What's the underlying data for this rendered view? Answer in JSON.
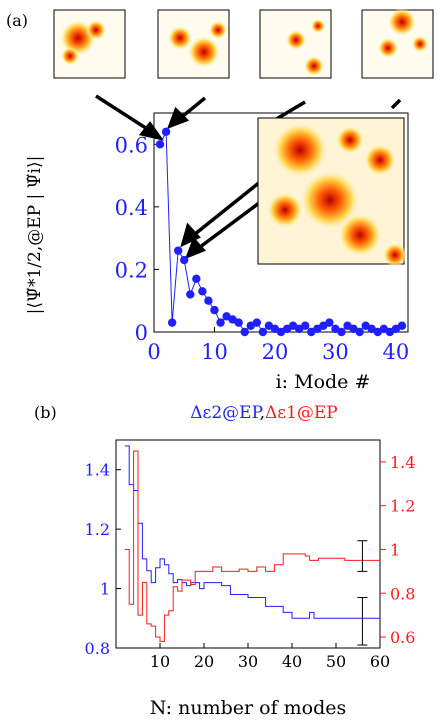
{
  "panel_a_label": "(a)",
  "panel_b_label": "(b)",
  "colors": {
    "blue": "#1f1fff",
    "red": "#ff1a1a",
    "black": "#000000"
  },
  "chart_data": [
    {
      "type": "scatter",
      "panel": "(a)",
      "xlabel": "i: Mode #",
      "ylabel": "|⟨Ψ̃*1/2,@EP | Ψ̃i⟩|",
      "xlim": [
        0,
        42
      ],
      "ylim": [
        0,
        0.7
      ],
      "xticks": [
        "0",
        "10",
        "20",
        "30",
        "40"
      ],
      "yticks": [
        "0",
        "0.2",
        "0.4",
        "0.6"
      ],
      "x": [
        1,
        2,
        3,
        4,
        5,
        6,
        7,
        8,
        9,
        10,
        11,
        12,
        13,
        14,
        15,
        16,
        17,
        18,
        19,
        20,
        21,
        22,
        23,
        24,
        25,
        26,
        27,
        28,
        29,
        30,
        31,
        32,
        33,
        34,
        35,
        36,
        37,
        38,
        39,
        40,
        41
      ],
      "y": [
        0.6,
        0.64,
        0.03,
        0.26,
        0.23,
        0.12,
        0.17,
        0.13,
        0.1,
        0.07,
        0.03,
        0.05,
        0.04,
        0.03,
        0.0,
        0.02,
        0.03,
        0.0,
        0.02,
        0.01,
        0.0,
        0.01,
        0.02,
        0.01,
        0.02,
        0.0,
        0.01,
        0.02,
        0.03,
        0.01,
        0.0,
        0.02,
        0.01,
        0.0,
        0.02,
        0.01,
        0.0,
        0.01,
        0.0,
        0.01,
        0.02
      ],
      "series_color": "#1f1fff"
    },
    {
      "type": "line",
      "panel": "(b)",
      "title_blue": "Δε2@EP",
      "title_sep": ",",
      "title_red": "Δε1@EP",
      "xlabel": "N: number of modes",
      "xlim": [
        0,
        60
      ],
      "xticks": [
        "10",
        "20",
        "30",
        "40",
        "50",
        "60"
      ],
      "left_ylim": [
        0.8,
        1.5
      ],
      "left_yticks": [
        "0.8",
        "1",
        "1.2",
        "1.4"
      ],
      "right_ylim": [
        0.55,
        1.5
      ],
      "right_yticks": [
        "0.6",
        "0.8",
        "1",
        "1.2",
        "1.4"
      ],
      "series": [
        {
          "axis": "left",
          "color": "#1f1fff",
          "x": [
            2,
            3,
            4,
            5,
            6,
            7,
            8,
            9,
            10,
            11,
            12,
            13,
            14,
            15,
            16,
            17,
            18,
            19,
            20,
            22,
            24,
            26,
            28,
            30,
            32,
            34,
            36,
            38,
            40,
            43,
            44,
            45,
            48,
            52,
            55,
            58,
            60
          ],
          "y": [
            1.48,
            1.35,
            1.33,
            1.22,
            1.1,
            1.06,
            1.02,
            1.07,
            1.1,
            1.08,
            1.05,
            1.02,
            1.03,
            1.02,
            1.01,
            1.02,
            1.02,
            1.0,
            1.02,
            1.02,
            1.01,
            0.98,
            0.98,
            0.97,
            0.97,
            0.94,
            0.94,
            0.92,
            0.9,
            0.9,
            0.92,
            0.9,
            0.9,
            0.9,
            0.9,
            0.9,
            0.9
          ]
        },
        {
          "axis": "right",
          "color": "#ff1a1a",
          "x": [
            2,
            3,
            4,
            5,
            6,
            7,
            8,
            9,
            10,
            11,
            12,
            13,
            14,
            15,
            16,
            17,
            18,
            19,
            20,
            22,
            24,
            26,
            28,
            30,
            32,
            34,
            36,
            38,
            40,
            43,
            44,
            46,
            48,
            52,
            55,
            58,
            60
          ],
          "y": [
            1.0,
            0.75,
            1.45,
            0.7,
            0.85,
            0.66,
            0.65,
            0.6,
            0.58,
            0.7,
            0.72,
            0.83,
            0.81,
            0.86,
            0.86,
            0.84,
            0.9,
            0.9,
            0.9,
            0.92,
            0.9,
            0.9,
            0.91,
            0.9,
            0.92,
            0.9,
            0.93,
            0.98,
            0.98,
            0.97,
            0.95,
            0.96,
            0.96,
            0.95,
            0.95,
            0.95,
            0.95
          ]
        }
      ],
      "errorbars": [
        {
          "axis": "left",
          "x": 56,
          "low": 0.81,
          "high": 0.97
        },
        {
          "axis": "right",
          "x": 56,
          "low": 0.9,
          "high": 1.04
        }
      ]
    }
  ]
}
